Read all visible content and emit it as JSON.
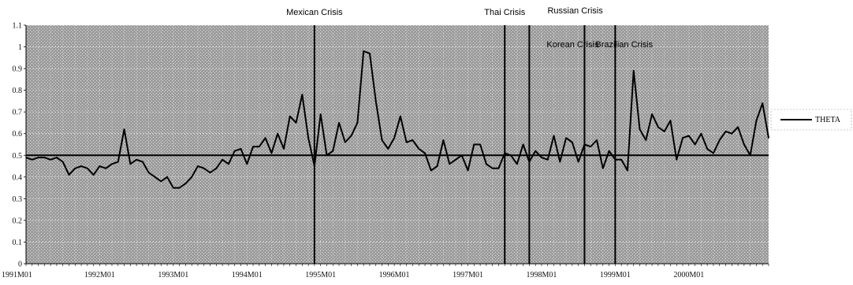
{
  "chart_data": {
    "type": "line",
    "title": "",
    "xlabel": "",
    "ylabel": "",
    "ylim": [
      0,
      1.1
    ],
    "yticks": [
      "0",
      "0.1",
      "0.2",
      "0.3",
      "0.4",
      "0.5",
      "0.6",
      "0.7",
      "0.8",
      "0.9",
      "1",
      "1.1"
    ],
    "xticks": [
      "1991M01",
      "1992M01",
      "1993M01",
      "1994M01",
      "1995M01",
      "1996M01",
      "1997M01",
      "1998M01",
      "1999M01",
      "2000M01"
    ],
    "x_start": "1991M01",
    "grid": true,
    "reference_line": 0.5,
    "legend": {
      "placement": "right",
      "entries": [
        "THETA"
      ]
    },
    "series": [
      {
        "name": "THETA",
        "values": [
          0.49,
          0.48,
          0.49,
          0.49,
          0.48,
          0.49,
          0.47,
          0.41,
          0.44,
          0.45,
          0.44,
          0.41,
          0.45,
          0.44,
          0.46,
          0.47,
          0.62,
          0.46,
          0.48,
          0.47,
          0.42,
          0.4,
          0.38,
          0.4,
          0.35,
          0.35,
          0.37,
          0.4,
          0.45,
          0.44,
          0.42,
          0.44,
          0.48,
          0.46,
          0.52,
          0.53,
          0.46,
          0.54,
          0.54,
          0.58,
          0.51,
          0.6,
          0.53,
          0.68,
          0.65,
          0.78,
          0.58,
          0.45,
          0.69,
          0.5,
          0.52,
          0.65,
          0.56,
          0.59,
          0.65,
          0.98,
          0.97,
          0.75,
          0.57,
          0.53,
          0.58,
          0.68,
          0.56,
          0.57,
          0.53,
          0.51,
          0.43,
          0.45,
          0.57,
          0.46,
          0.48,
          0.5,
          0.43,
          0.55,
          0.55,
          0.46,
          0.44,
          0.44,
          0.51,
          0.5,
          0.46,
          0.55,
          0.47,
          0.52,
          0.49,
          0.48,
          0.59,
          0.47,
          0.58,
          0.56,
          0.47,
          0.55,
          0.54,
          0.57,
          0.44,
          0.52,
          0.48,
          0.48,
          0.43,
          0.89,
          0.62,
          0.57,
          0.69,
          0.63,
          0.61,
          0.66,
          0.48,
          0.58,
          0.59,
          0.55,
          0.6,
          0.53,
          0.51,
          0.57,
          0.61,
          0.6,
          0.63,
          0.55,
          0.5,
          0.66,
          0.74,
          0.58
        ]
      }
    ],
    "annotations": [
      {
        "label": "Mexican Crisis",
        "date": "1994M12"
      },
      {
        "label": "Thai Crisis",
        "date": "1997M07"
      },
      {
        "label": "Korean Crisis",
        "date": "1997M11"
      },
      {
        "label": "Russian  Crisis",
        "date": "1998M08"
      },
      {
        "label": "Brazilian Crisis",
        "date": "1999M01"
      }
    ]
  }
}
